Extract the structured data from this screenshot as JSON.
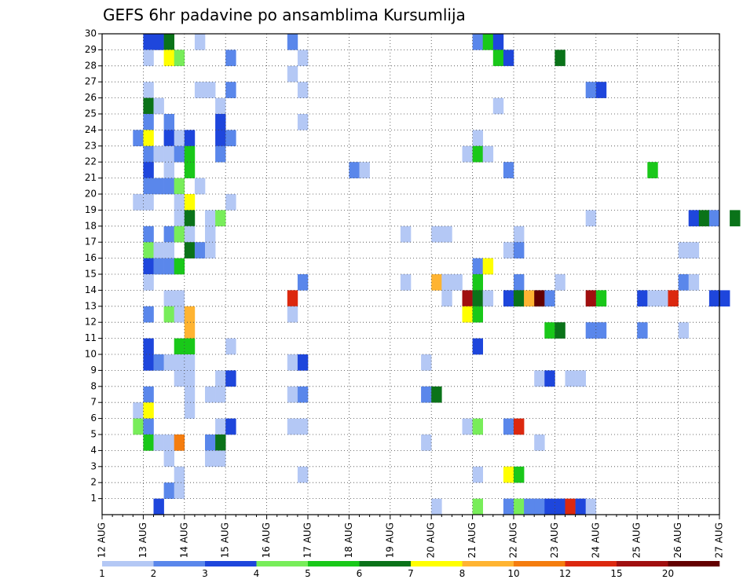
{
  "chart_data": {
    "type": "heatmap",
    "title": "GEFS 6hr padavine po ansamblima Kursumlija",
    "x_axis": {
      "tick_labels": [
        "12 AUG",
        "13 AUG",
        "14 AUG",
        "15 AUG",
        "16 AUG",
        "17 AUG",
        "18 AUG",
        "19 AUG",
        "20 AUG",
        "21 AUG",
        "22 AUG",
        "23 AUG",
        "24 AUG",
        "25 AUG",
        "26 AUG",
        "27 AUG"
      ],
      "range_days": [
        0,
        15
      ],
      "step_hours": 6
    },
    "y_axis": {
      "tick_labels": [
        "1",
        "2",
        "3",
        "4",
        "5",
        "6",
        "7",
        "8",
        "9",
        "10",
        "11",
        "12",
        "13",
        "14",
        "15",
        "16",
        "17",
        "18",
        "19",
        "20",
        "21",
        "22",
        "23",
        "24",
        "25",
        "26",
        "27",
        "28",
        "29",
        "30"
      ],
      "range": [
        0,
        30
      ]
    },
    "grid": "dotted",
    "colorbar": {
      "placement": "bottom",
      "labels": [
        "1",
        "2",
        "3",
        "4",
        "5",
        "6",
        "7",
        "8",
        "10",
        "12",
        "15",
        "20"
      ],
      "colors": [
        "#b4c8f5",
        "#5a87eb",
        "#1e46dc",
        "#78ed5a",
        "#19c819",
        "#0a7319",
        "#ffff00",
        "#ffb432",
        "#f57d0f",
        "#dc280f",
        "#a00f0f",
        "#640000"
      ]
    },
    "cells_note": "each cell is [step_index (6h from 12 AUG 00Z), member, color_class 0-11]",
    "cells": [
      [
        4,
        30,
        2
      ],
      [
        5,
        30,
        2
      ],
      [
        6,
        30,
        5
      ],
      [
        9,
        30,
        0
      ],
      [
        18,
        30,
        1
      ],
      [
        36,
        30,
        1
      ],
      [
        37,
        30,
        4
      ],
      [
        38,
        30,
        2
      ],
      [
        4,
        29,
        0
      ],
      [
        6,
        29,
        6
      ],
      [
        7,
        29,
        3
      ],
      [
        12,
        29,
        1
      ],
      [
        19,
        29,
        0
      ],
      [
        38,
        29,
        4
      ],
      [
        39,
        29,
        2
      ],
      [
        44,
        29,
        5
      ],
      [
        18,
        28,
        0
      ],
      [
        4,
        27,
        0
      ],
      [
        9,
        27,
        0
      ],
      [
        10,
        27,
        0
      ],
      [
        12,
        27,
        1
      ],
      [
        19,
        27,
        0
      ],
      [
        47,
        27,
        1
      ],
      [
        48,
        27,
        2
      ],
      [
        4,
        26,
        5
      ],
      [
        5,
        26,
        0
      ],
      [
        11,
        26,
        0
      ],
      [
        38,
        26,
        0
      ],
      [
        4,
        25,
        1
      ],
      [
        6,
        25,
        1
      ],
      [
        11,
        25,
        2
      ],
      [
        19,
        25,
        0
      ],
      [
        3,
        24,
        1
      ],
      [
        4,
        24,
        6
      ],
      [
        6,
        24,
        2
      ],
      [
        7,
        24,
        0
      ],
      [
        8,
        24,
        2
      ],
      [
        11,
        24,
        2
      ],
      [
        12,
        24,
        1
      ],
      [
        36,
        24,
        0
      ],
      [
        4,
        23,
        1
      ],
      [
        5,
        23,
        0
      ],
      [
        6,
        23,
        0
      ],
      [
        7,
        23,
        1
      ],
      [
        8,
        23,
        4
      ],
      [
        11,
        23,
        1
      ],
      [
        35,
        23,
        0
      ],
      [
        36,
        23,
        4
      ],
      [
        37,
        23,
        0
      ],
      [
        4,
        22,
        2
      ],
      [
        6,
        22,
        0
      ],
      [
        8,
        22,
        4
      ],
      [
        24,
        22,
        1
      ],
      [
        25,
        22,
        0
      ],
      [
        39,
        22,
        1
      ],
      [
        53,
        22,
        4
      ],
      [
        4,
        21,
        1
      ],
      [
        5,
        21,
        1
      ],
      [
        6,
        21,
        1
      ],
      [
        7,
        21,
        3
      ],
      [
        9,
        21,
        0
      ],
      [
        3,
        20,
        0
      ],
      [
        4,
        20,
        0
      ],
      [
        7,
        20,
        0
      ],
      [
        8,
        20,
        6
      ],
      [
        12,
        20,
        0
      ],
      [
        7,
        19,
        0
      ],
      [
        8,
        19,
        5
      ],
      [
        10,
        19,
        0
      ],
      [
        11,
        19,
        3
      ],
      [
        47,
        19,
        0
      ],
      [
        57,
        19,
        2
      ],
      [
        58,
        19,
        5
      ],
      [
        59,
        19,
        1
      ],
      [
        61,
        19,
        5
      ],
      [
        4,
        18,
        1
      ],
      [
        6,
        18,
        1
      ],
      [
        7,
        18,
        3
      ],
      [
        8,
        18,
        0
      ],
      [
        10,
        18,
        0
      ],
      [
        29,
        18,
        0
      ],
      [
        32,
        18,
        0
      ],
      [
        33,
        18,
        0
      ],
      [
        40,
        18,
        0
      ],
      [
        4,
        17,
        3
      ],
      [
        5,
        17,
        0
      ],
      [
        6,
        17,
        0
      ],
      [
        8,
        17,
        5
      ],
      [
        9,
        17,
        1
      ],
      [
        10,
        17,
        0
      ],
      [
        39,
        17,
        0
      ],
      [
        40,
        17,
        1
      ],
      [
        56,
        17,
        0
      ],
      [
        57,
        17,
        0
      ],
      [
        4,
        16,
        2
      ],
      [
        5,
        16,
        1
      ],
      [
        6,
        16,
        1
      ],
      [
        7,
        16,
        4
      ],
      [
        36,
        16,
        1
      ],
      [
        37,
        16,
        6
      ],
      [
        4,
        15,
        0
      ],
      [
        19,
        15,
        1
      ],
      [
        29,
        15,
        0
      ],
      [
        32,
        15,
        7
      ],
      [
        33,
        15,
        0
      ],
      [
        34,
        15,
        0
      ],
      [
        36,
        15,
        4
      ],
      [
        40,
        15,
        1
      ],
      [
        44,
        15,
        0
      ],
      [
        56,
        15,
        1
      ],
      [
        57,
        15,
        0
      ],
      [
        6,
        14,
        0
      ],
      [
        7,
        14,
        0
      ],
      [
        18,
        14,
        9
      ],
      [
        33,
        14,
        0
      ],
      [
        35,
        14,
        10
      ],
      [
        36,
        14,
        5
      ],
      [
        37,
        14,
        0
      ],
      [
        39,
        14,
        2
      ],
      [
        40,
        14,
        5
      ],
      [
        41,
        14,
        7
      ],
      [
        42,
        14,
        11
      ],
      [
        43,
        14,
        1
      ],
      [
        47,
        14,
        10
      ],
      [
        48,
        14,
        4
      ],
      [
        52,
        14,
        2
      ],
      [
        53,
        14,
        0
      ],
      [
        54,
        14,
        0
      ],
      [
        55,
        14,
        9
      ],
      [
        59,
        14,
        2
      ],
      [
        60,
        14,
        2
      ],
      [
        4,
        13,
        1
      ],
      [
        6,
        13,
        3
      ],
      [
        7,
        13,
        0
      ],
      [
        8,
        13,
        7
      ],
      [
        18,
        13,
        0
      ],
      [
        35,
        13,
        6
      ],
      [
        36,
        13,
        4
      ],
      [
        8,
        12,
        7
      ],
      [
        43,
        12,
        4
      ],
      [
        44,
        12,
        5
      ],
      [
        47,
        12,
        1
      ],
      [
        48,
        12,
        1
      ],
      [
        52,
        12,
        1
      ],
      [
        56,
        12,
        0
      ],
      [
        4,
        11,
        2
      ],
      [
        7,
        11,
        4
      ],
      [
        8,
        11,
        4
      ],
      [
        12,
        11,
        0
      ],
      [
        36,
        11,
        2
      ],
      [
        4,
        10,
        2
      ],
      [
        5,
        10,
        1
      ],
      [
        6,
        10,
        0
      ],
      [
        7,
        10,
        0
      ],
      [
        8,
        10,
        0
      ],
      [
        18,
        10,
        0
      ],
      [
        19,
        10,
        2
      ],
      [
        31,
        10,
        0
      ],
      [
        7,
        9,
        0
      ],
      [
        8,
        9,
        0
      ],
      [
        11,
        9,
        0
      ],
      [
        12,
        9,
        2
      ],
      [
        42,
        9,
        0
      ],
      [
        43,
        9,
        2
      ],
      [
        45,
        9,
        0
      ],
      [
        46,
        9,
        0
      ],
      [
        4,
        8,
        1
      ],
      [
        8,
        8,
        0
      ],
      [
        10,
        8,
        0
      ],
      [
        11,
        8,
        0
      ],
      [
        18,
        8,
        0
      ],
      [
        19,
        8,
        1
      ],
      [
        31,
        8,
        1
      ],
      [
        32,
        8,
        5
      ],
      [
        3,
        7,
        0
      ],
      [
        4,
        7,
        6
      ],
      [
        8,
        7,
        0
      ],
      [
        3,
        6,
        3
      ],
      [
        4,
        6,
        1
      ],
      [
        11,
        6,
        0
      ],
      [
        12,
        6,
        2
      ],
      [
        18,
        6,
        0
      ],
      [
        19,
        6,
        0
      ],
      [
        35,
        6,
        0
      ],
      [
        36,
        6,
        3
      ],
      [
        39,
        6,
        1
      ],
      [
        40,
        6,
        9
      ],
      [
        4,
        5,
        4
      ],
      [
        5,
        5,
        0
      ],
      [
        6,
        5,
        0
      ],
      [
        7,
        5,
        8
      ],
      [
        10,
        5,
        1
      ],
      [
        11,
        5,
        5
      ],
      [
        31,
        5,
        0
      ],
      [
        42,
        5,
        0
      ],
      [
        6,
        4,
        0
      ],
      [
        10,
        4,
        0
      ],
      [
        11,
        4,
        0
      ],
      [
        7,
        3,
        0
      ],
      [
        19,
        3,
        0
      ],
      [
        36,
        3,
        0
      ],
      [
        39,
        3,
        6
      ],
      [
        40,
        3,
        4
      ],
      [
        6,
        2,
        1
      ],
      [
        7,
        2,
        0
      ],
      [
        5,
        1,
        2
      ],
      [
        32,
        1,
        0
      ],
      [
        36,
        1,
        3
      ],
      [
        39,
        1,
        1
      ],
      [
        40,
        1,
        3
      ],
      [
        41,
        1,
        1
      ],
      [
        42,
        1,
        1
      ],
      [
        43,
        1,
        2
      ],
      [
        44,
        1,
        2
      ],
      [
        45,
        1,
        9
      ],
      [
        46,
        1,
        2
      ],
      [
        47,
        1,
        0
      ]
    ]
  }
}
